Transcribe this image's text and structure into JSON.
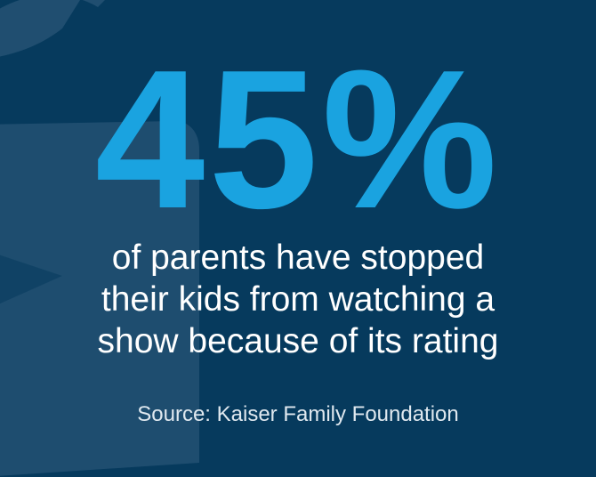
{
  "colors": {
    "background": "#063a5d",
    "accent": "#1aa3e0",
    "text": "#ffffff",
    "muted_text": "#dfe8ef",
    "shape": "#2a5677"
  },
  "headline": {
    "value": "45%"
  },
  "statement": {
    "lines": [
      "of parents have stopped",
      "their kids from watching a",
      "show because of its rating"
    ]
  },
  "source": {
    "text": "Source: Kaiser Family Foundation"
  },
  "background_art": {
    "icon": "tv-outline-icon"
  }
}
